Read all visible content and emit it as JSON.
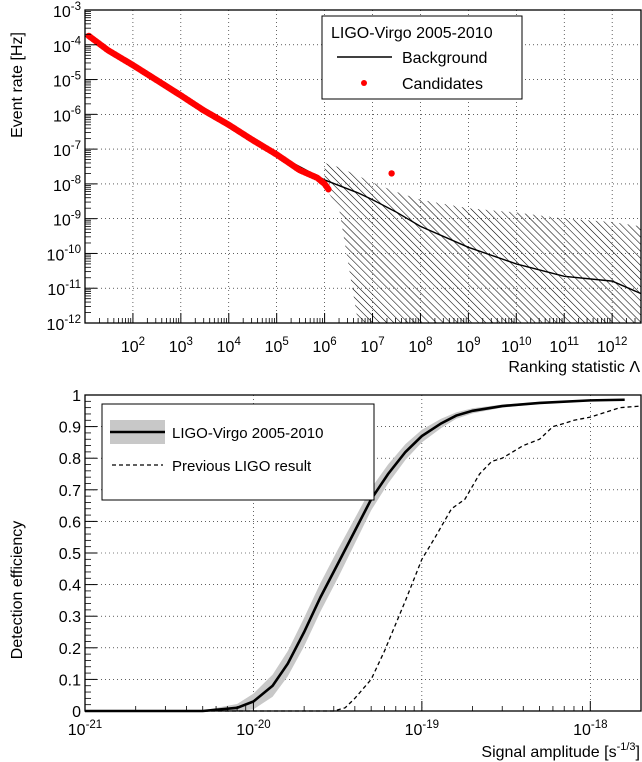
{
  "chart_data": [
    {
      "type": "scatter",
      "xlabel": "Ranking statistic Λ",
      "ylabel": "Event rate [Hz]",
      "xscale": "log",
      "yscale": "log",
      "xlim": [
        10,
        4000000000000.0
      ],
      "ylim": [
        1e-12,
        0.001
      ],
      "x_tick_labels": [
        "10^2",
        "10^3",
        "10^4",
        "10^5",
        "10^6",
        "10^7",
        "10^8",
        "10^9",
        "10^10",
        "10^11",
        "10^12"
      ],
      "y_tick_labels": [
        "10^-12",
        "10^-11",
        "10^-10",
        "10^-9",
        "10^-8",
        "10^-7",
        "10^-6",
        "10^-5",
        "10^-4",
        "10^-3"
      ],
      "grid": true,
      "legend_position": "top-right",
      "legend": {
        "title": "LIGO-Virgo 2005-2010",
        "entries": [
          "Background",
          "Candidates"
        ]
      },
      "series": [
        {
          "name": "Background",
          "style": "line",
          "color": "#000000",
          "x": [
            10,
            100,
            1000,
            10000,
            100000,
            1000000,
            5000000,
            10000000,
            30000000,
            100000000,
            1000000000,
            10000000000,
            100000000000,
            1000000000000,
            4000000000000
          ],
          "y": [
            0.00018,
            2.6e-05,
            3.5e-06,
            5e-07,
            7e-08,
            1.3e-08,
            5.5e-09,
            3.5e-09,
            1.6e-09,
            6e-10,
            1.5e-10,
            5e-11,
            2.2e-11,
            1.6e-11,
            7e-12
          ]
        },
        {
          "name": "Background uncertainty",
          "style": "hatched-band",
          "x": [
            1000000,
            2000000,
            5000000,
            10000000,
            30000000,
            100000000,
            1000000000,
            10000000000,
            100000000000,
            1000000000000,
            4000000000000
          ],
          "y_upper": [
            4e-08,
            3e-08,
            1.7e-08,
            1.1e-08,
            6e-09,
            3.5e-09,
            2e-09,
            1.5e-09,
            1e-09,
            8e-10,
            6e-10
          ],
          "y_lower": [
            8e-09,
            2e-09,
            1e-12,
            1e-12,
            1e-12,
            1e-12,
            1e-12,
            1e-12,
            1e-12,
            1e-12,
            1e-12
          ]
        },
        {
          "name": "Candidates",
          "style": "points",
          "color": "#ff0000",
          "x": [
            12,
            30,
            100,
            300,
            1000,
            3000,
            10000,
            30000,
            100000,
            300000,
            700000,
            1000000,
            1200000,
            25000000
          ],
          "y": [
            0.00018,
            7e-05,
            2.6e-05,
            1e-05,
            3.5e-06,
            1.3e-06,
            5e-07,
            1.9e-07,
            7e-08,
            2.5e-08,
            1.5e-08,
            1e-08,
            7e-09,
            2e-08
          ]
        }
      ]
    },
    {
      "type": "line",
      "xlabel": "Signal amplitude [s^-1/3]",
      "ylabel": "Detection efficiency",
      "xscale": "log",
      "xlim": [
        1e-21,
        2e-18
      ],
      "ylim": [
        0,
        1
      ],
      "x_tick_labels": [
        "10^-21",
        "10^-20",
        "10^-19",
        "10^-18"
      ],
      "y_tick_labels": [
        "0",
        "0.1",
        "0.2",
        "0.3",
        "0.4",
        "0.5",
        "0.6",
        "0.7",
        "0.8",
        "0.9",
        "1"
      ],
      "grid": true,
      "legend_position": "top-left",
      "series": [
        {
          "name": "LIGO-Virgo 2005-2010",
          "style": "solid-with-band",
          "color": "#000000",
          "band_color": "#c8c8c8",
          "x": [
            1e-21,
            5e-21,
            8e-21,
            1e-20,
            1.3e-20,
            1.6e-20,
            2e-20,
            2.5e-20,
            3.2e-20,
            4e-20,
            5e-20,
            6.3e-20,
            8e-20,
            1e-19,
            1.3e-19,
            1.6e-19,
            2e-19,
            3e-19,
            5e-19,
            1e-18,
            1.6e-18
          ],
          "y": [
            0,
            0,
            0.01,
            0.03,
            0.08,
            0.15,
            0.25,
            0.36,
            0.47,
            0.57,
            0.67,
            0.75,
            0.82,
            0.87,
            0.91,
            0.935,
            0.95,
            0.965,
            0.975,
            0.983,
            0.985
          ],
          "band_width": [
            0,
            0.002,
            0.012,
            0.025,
            0.035,
            0.04,
            0.045,
            0.045,
            0.045,
            0.04,
            0.035,
            0.03,
            0.025,
            0.02,
            0.015,
            0.01,
            0.008,
            0.005,
            0.003,
            0.002,
            0.002
          ]
        },
        {
          "name": "Previous LIGO result",
          "style": "dashed",
          "color": "#000000",
          "x": [
            1e-21,
            3e-20,
            3.5e-20,
            4e-20,
            5e-20,
            6e-20,
            8e-20,
            1e-19,
            1.2e-19,
            1.5e-19,
            1.8e-19,
            2.2e-19,
            2.6e-19,
            3e-19,
            4e-19,
            5e-19,
            6e-19,
            7e-19,
            8e-19,
            1e-18,
            1.5e-18,
            2e-18
          ],
          "y": [
            0,
            0,
            0.01,
            0.04,
            0.1,
            0.19,
            0.35,
            0.48,
            0.55,
            0.64,
            0.67,
            0.75,
            0.79,
            0.8,
            0.84,
            0.86,
            0.9,
            0.91,
            0.92,
            0.93,
            0.96,
            0.965
          ]
        }
      ]
    }
  ]
}
